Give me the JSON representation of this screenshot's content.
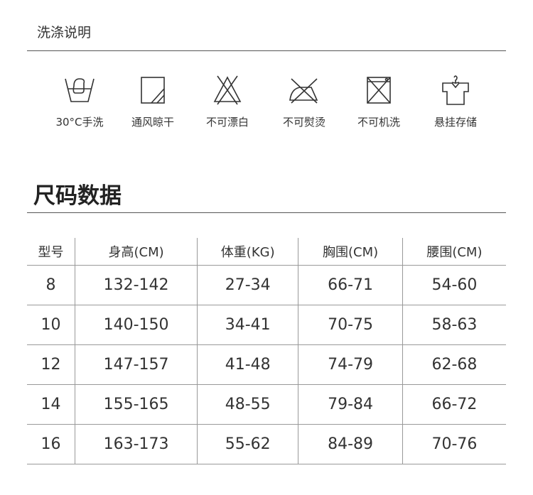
{
  "care": {
    "title": "洗涤说明",
    "items": [
      {
        "icon": "hand-wash-icon",
        "label": "30°C手洗"
      },
      {
        "icon": "shade-dry-icon",
        "label": "通风晾干"
      },
      {
        "icon": "no-bleach-icon",
        "label": "不可漂白"
      },
      {
        "icon": "no-iron-icon",
        "label": "不可熨烫"
      },
      {
        "icon": "no-machine-wash-icon",
        "label": "不可机洗"
      },
      {
        "icon": "hang-icon",
        "label": "悬挂存储"
      }
    ]
  },
  "size": {
    "title": "尺码数据",
    "headers": [
      "型号",
      "身高(CM)",
      "体重(KG)",
      "胸围(CM)",
      "腰围(CM)"
    ],
    "rows": [
      [
        "8",
        "132-142",
        "27-34",
        "66-71",
        "54-60"
      ],
      [
        "10",
        "140-150",
        "34-41",
        "70-75",
        "58-63"
      ],
      [
        "12",
        "147-157",
        "41-48",
        "74-79",
        "62-68"
      ],
      [
        "14",
        "155-165",
        "48-55",
        "79-84",
        "66-72"
      ],
      [
        "16",
        "163-173",
        "55-62",
        "84-89",
        "70-76"
      ]
    ]
  }
}
